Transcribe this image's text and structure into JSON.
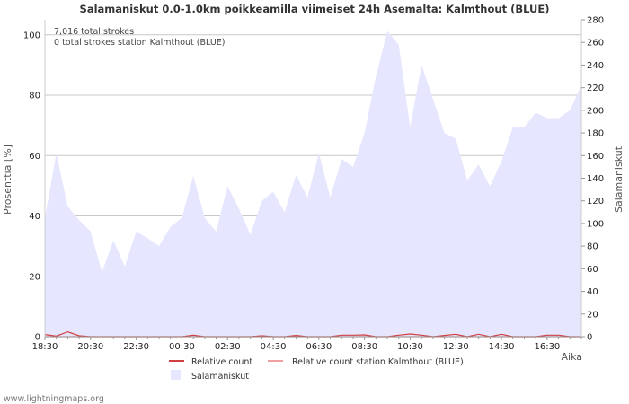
{
  "chart_data": {
    "type": "area",
    "title": "Salamaniskut 0.0-1.0km poikkeamilla viimeiset 24h Asemalta: Kalmthout (BLUE)",
    "xlabel": "Aika",
    "ylabel_left": "Prosenttia  [%]",
    "ylabel_right": "Salamaniskut",
    "ylim_left": [
      0,
      105
    ],
    "ylim_right": [
      0,
      280
    ],
    "yticks_left": [
      0,
      20,
      40,
      60,
      80,
      100
    ],
    "yticks_right": [
      0,
      20,
      40,
      60,
      80,
      100,
      120,
      140,
      160,
      180,
      200,
      220,
      240,
      260,
      280
    ],
    "x_tick_labels": [
      "18:30",
      "20:30",
      "22:30",
      "00:30",
      "02:30",
      "04:30",
      "06:30",
      "08:30",
      "10:30",
      "12:30",
      "14:30",
      "16:30"
    ],
    "x_start": "18:30",
    "x_step_minutes": 30,
    "notes": [
      "7,016 total strokes",
      "0 total strokes station Kalmthout (BLUE)"
    ],
    "series": [
      {
        "name": "Salamaniskut",
        "axis": "right",
        "color": "#e6e6ff",
        "values": [
          105,
          162,
          115,
          103,
          93,
          57,
          85,
          62,
          93,
          87,
          80,
          97,
          105,
          142,
          105,
          93,
          133,
          113,
          90,
          120,
          128,
          110,
          143,
          123,
          162,
          123,
          157,
          150,
          180,
          230,
          270,
          258,
          185,
          240,
          210,
          180,
          175,
          138,
          152,
          133,
          155,
          185,
          185,
          198,
          193,
          193,
          200,
          222
        ]
      },
      {
        "name": "Relative count",
        "axis": "left",
        "color": "#d04040",
        "values": [
          0.7,
          0.2,
          1.6,
          0.3,
          0,
          0,
          0,
          0,
          0,
          0,
          0,
          0,
          0,
          0.5,
          0,
          0,
          0,
          0,
          0,
          0.3,
          0,
          0,
          0.4,
          0,
          0,
          0,
          0.5,
          0.5,
          0.6,
          0,
          0,
          0.5,
          0.9,
          0.5,
          0,
          0.4,
          0.8,
          0,
          0.8,
          0,
          0.8,
          0,
          0,
          0,
          0.5,
          0.5,
          0,
          0
        ]
      },
      {
        "name": "Relative count station Kalmthout (BLUE)",
        "axis": "left",
        "color": "#f0a0a0",
        "values": [
          0,
          0,
          0,
          0,
          0,
          0,
          0,
          0,
          0,
          0,
          0,
          0,
          0,
          0,
          0,
          0,
          0,
          0,
          0,
          0,
          0,
          0,
          0,
          0,
          0,
          0,
          0,
          0,
          0,
          0,
          0,
          0,
          0,
          0,
          0,
          0,
          0,
          0,
          0,
          0,
          0,
          0,
          0,
          0,
          0,
          0,
          0,
          0
        ]
      }
    ],
    "legend": [
      {
        "label": "Relative count",
        "kind": "line",
        "color": "#d04040"
      },
      {
        "label": "Relative count station Kalmthout (BLUE)",
        "kind": "line",
        "color": "#f0a0a0"
      },
      {
        "label": "Salamaniskut",
        "kind": "area",
        "color": "#e6e6ff"
      }
    ]
  },
  "footer": {
    "credit": "www.lightningmaps.org"
  }
}
